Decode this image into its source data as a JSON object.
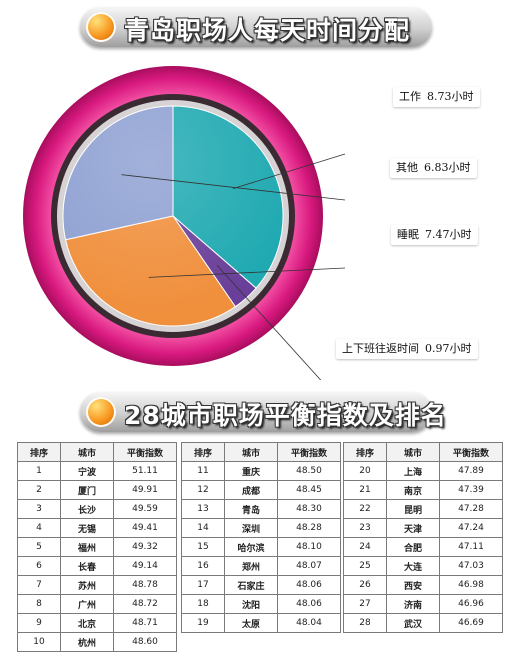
{
  "header": {
    "title": "青岛职场人每天时间分配"
  },
  "chart_data": [
    {
      "type": "pie",
      "title": "青岛职场人每天时间分配",
      "unit": "小时",
      "slices": [
        {
          "label": "工作",
          "value": 8.73,
          "display": "8.73小时",
          "color": "#1fa9b1"
        },
        {
          "label": "上下班往返时间",
          "value": 0.97,
          "display": "0.97小时",
          "color": "#6a3f99"
        },
        {
          "label": "睡眠",
          "value": 7.47,
          "display": "7.47小时",
          "color": "#f08f3c"
        },
        {
          "label": "其他",
          "value": 6.83,
          "display": "6.83小时",
          "color": "#8ea0d2"
        }
      ]
    },
    {
      "type": "table",
      "title": "28城市职场平衡指数及排名",
      "columns": [
        "排序",
        "城市",
        "平衡指数"
      ],
      "rows": [
        [
          "1",
          "宁波",
          "51.11"
        ],
        [
          "2",
          "厦门",
          "49.91"
        ],
        [
          "3",
          "长沙",
          "49.59"
        ],
        [
          "4",
          "无锡",
          "49.41"
        ],
        [
          "5",
          "福州",
          "49.32"
        ],
        [
          "6",
          "长春",
          "49.14"
        ],
        [
          "7",
          "苏州",
          "48.78"
        ],
        [
          "8",
          "广州",
          "48.72"
        ],
        [
          "9",
          "北京",
          "48.71"
        ],
        [
          "10",
          "杭州",
          "48.60"
        ],
        [
          "11",
          "重庆",
          "48.50"
        ],
        [
          "12",
          "成都",
          "48.45"
        ],
        [
          "13",
          "青岛",
          "48.30"
        ],
        [
          "14",
          "深圳",
          "48.28"
        ],
        [
          "15",
          "哈尔滨",
          "48.10"
        ],
        [
          "16",
          "郑州",
          "48.07"
        ],
        [
          "17",
          "石家庄",
          "48.06"
        ],
        [
          "18",
          "沈阳",
          "48.06"
        ],
        [
          "19",
          "太原",
          "48.04"
        ],
        [
          "20",
          "上海",
          "47.89"
        ],
        [
          "21",
          "南京",
          "47.39"
        ],
        [
          "22",
          "昆明",
          "47.28"
        ],
        [
          "23",
          "天津",
          "47.24"
        ],
        [
          "24",
          "合肥",
          "47.11"
        ],
        [
          "25",
          "大连",
          "47.03"
        ],
        [
          "26",
          "西安",
          "46.98"
        ],
        [
          "27",
          "济南",
          "46.96"
        ],
        [
          "28",
          "武汉",
          "46.69"
        ]
      ]
    }
  ],
  "section2": {
    "title": "28城市职场平衡指数及排名"
  },
  "colors": {
    "ring_magenta": "#d8197f",
    "ring_dark": "#3a2b33",
    "banner_dot": "#f7941d"
  }
}
